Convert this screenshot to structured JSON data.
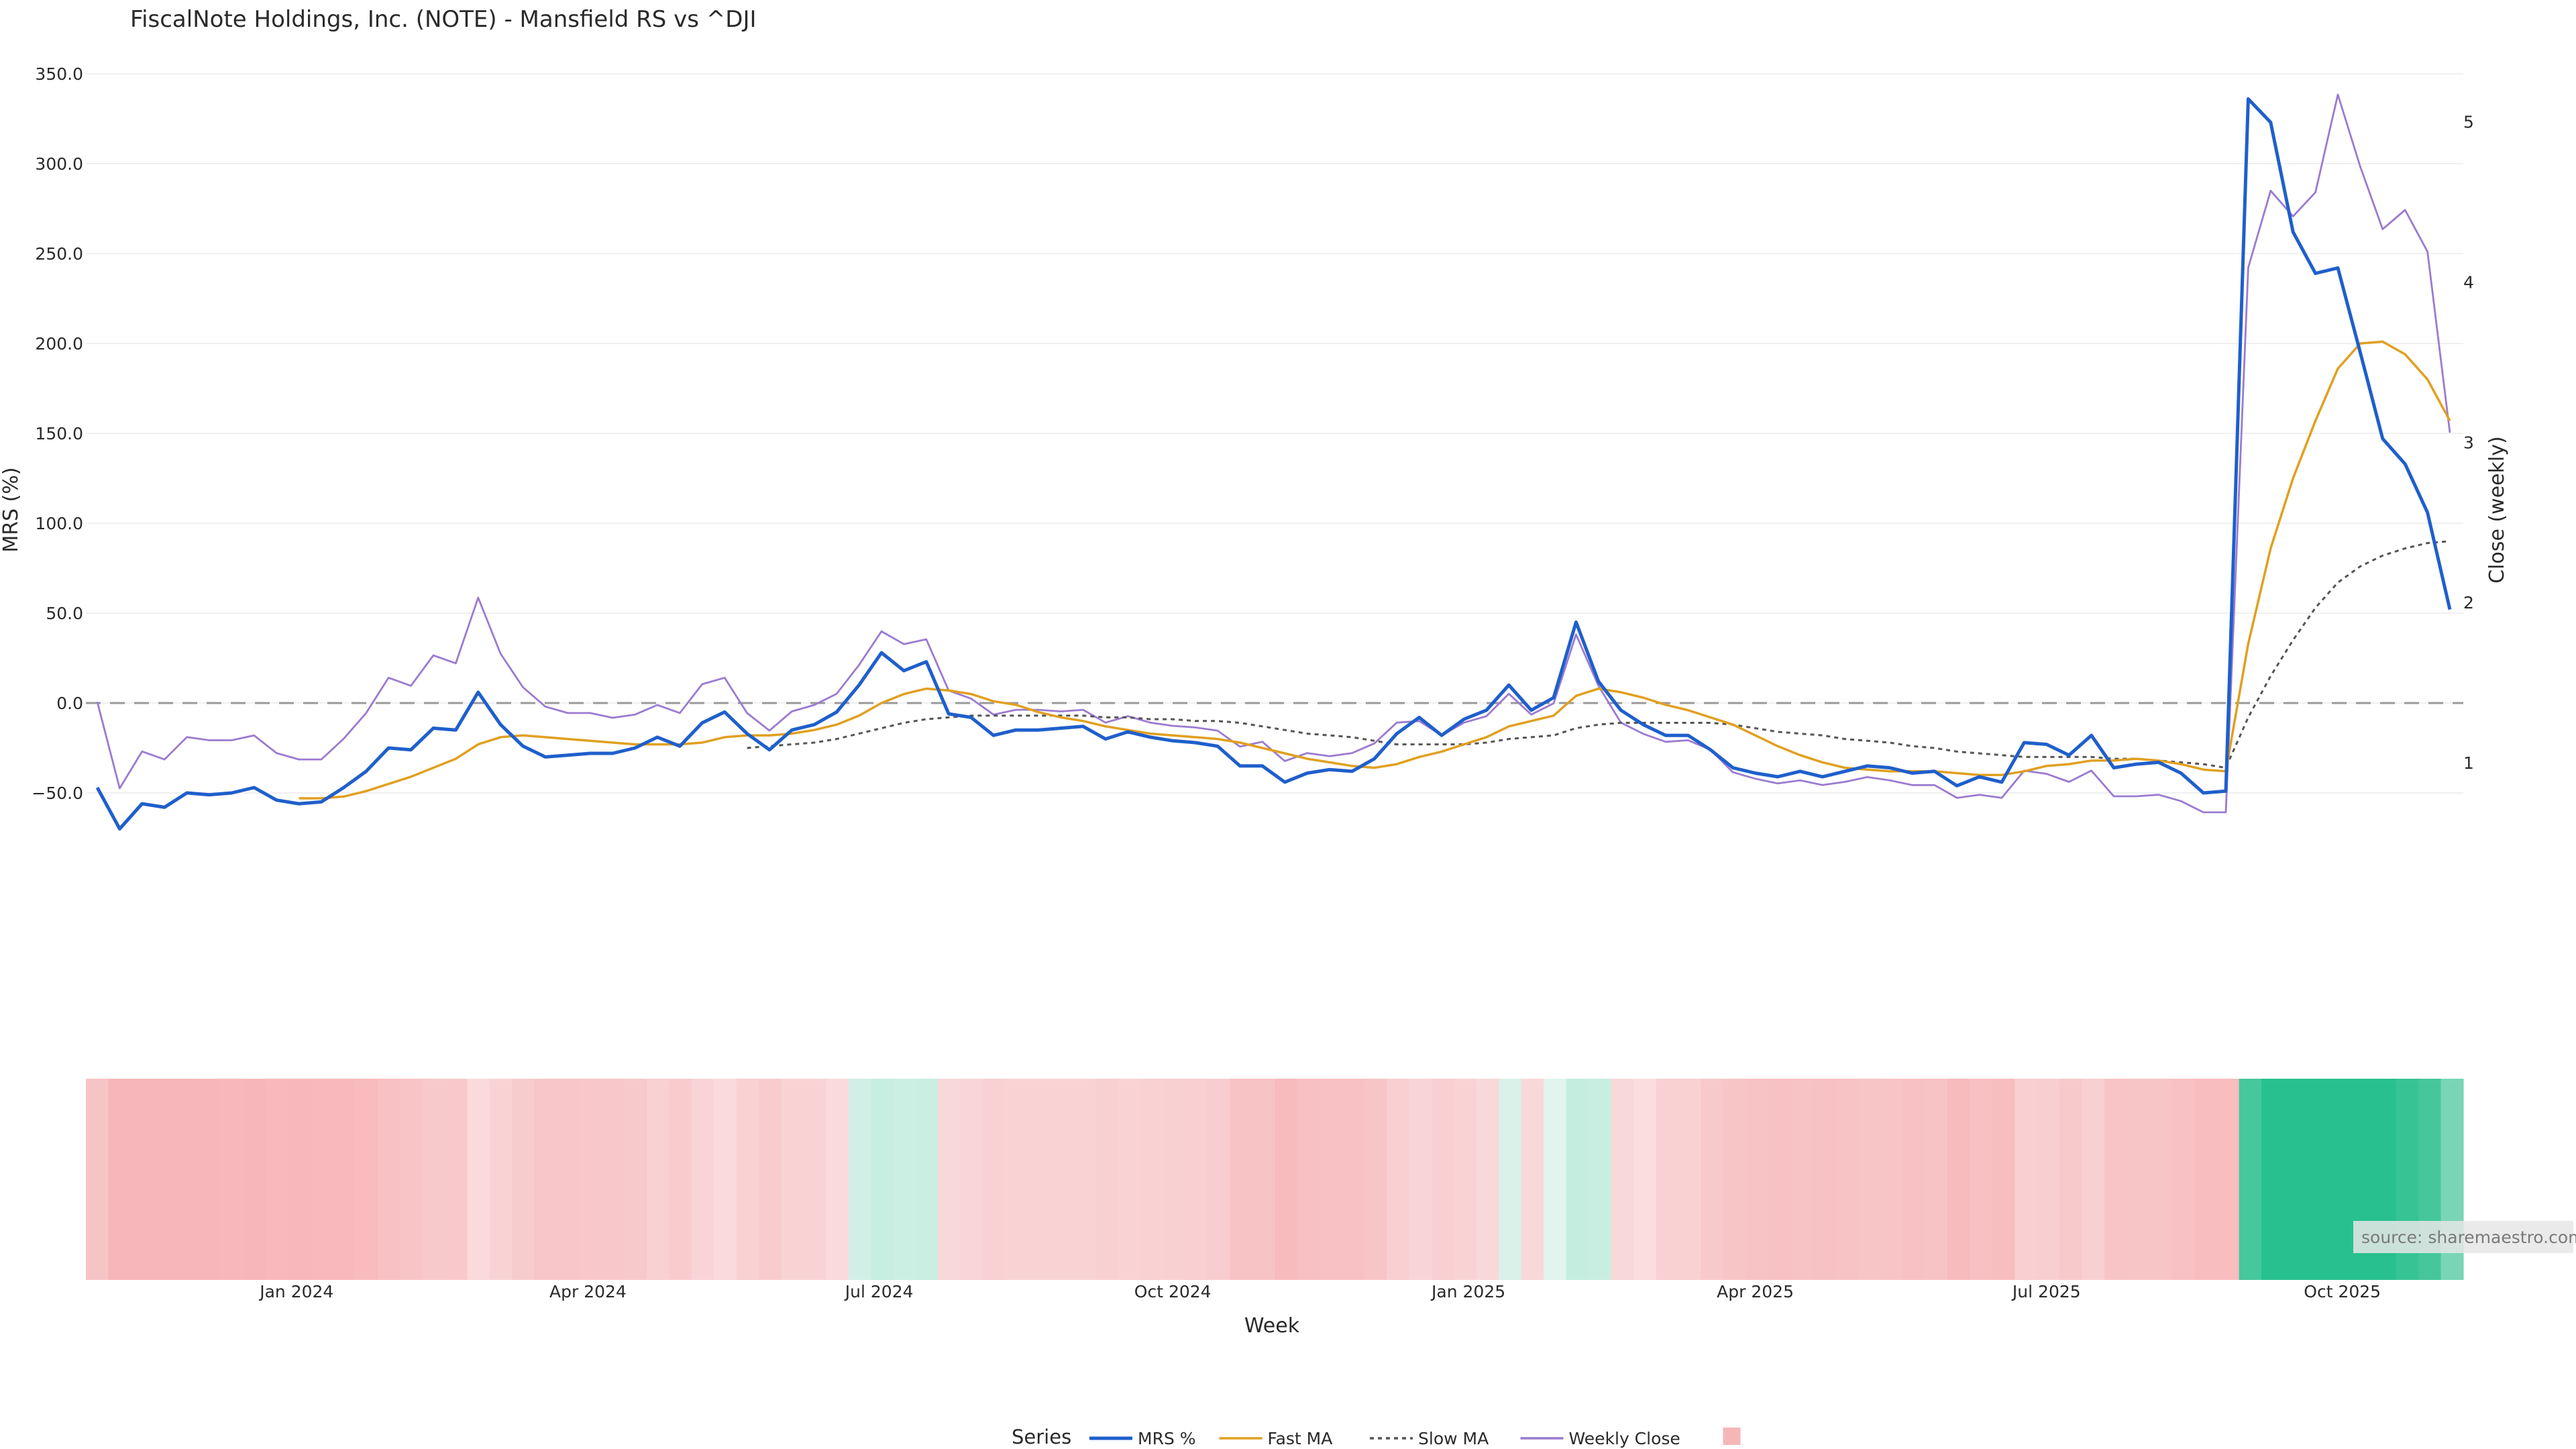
{
  "chart_data": {
    "type": "line",
    "title": "FiscalNote Holdings, Inc. (NOTE) - Mansfield RS vs ^DJI",
    "xlabel": "Week",
    "ylabel": "MRS (%)",
    "y2label": "Close (weekly)",
    "ylim": [
      -100,
      350
    ],
    "y2lim": [
      0.25,
      5.3
    ],
    "yticks": [
      "350.0",
      "300.0",
      "250.0",
      "200.0",
      "150.0",
      "100.0",
      "50.0",
      "0.0",
      "−50.0"
    ],
    "ytick_values": [
      350,
      300,
      250,
      200,
      150,
      100,
      50,
      0,
      -50
    ],
    "y2ticks": [
      "5",
      "4",
      "3",
      "2",
      "1"
    ],
    "y2tick_values": [
      5,
      4,
      3,
      2,
      1
    ],
    "xticks": [
      "Jan 2024",
      "Apr 2024",
      "Jul 2024",
      "Oct 2024",
      "Jan 2025",
      "Apr 2025",
      "Jul 2025",
      "Oct 2025"
    ],
    "xtick_index": [
      8.9,
      21.9,
      34.9,
      48.0,
      61.2,
      74.0,
      87.0,
      100.2
    ],
    "grid": true,
    "zero_line": true,
    "legend_title": "Series",
    "legend_position": "bottom",
    "source_text": "source: sharemaestro.com",
    "series": [
      {
        "name": "MRS %",
        "axis": "left",
        "color": "#1f5fcc",
        "values": [
          -47,
          -70,
          -56,
          -58,
          -50,
          -51,
          -50,
          -47,
          -54,
          -56,
          -55,
          -47,
          -38,
          -25,
          -26,
          -14,
          -15,
          6,
          -12,
          -24,
          -30,
          -29,
          -28,
          -28,
          -25,
          -19,
          -24,
          -11,
          -5,
          -17,
          -26,
          -15,
          -12,
          -5,
          10,
          28,
          18,
          23,
          -6,
          -8,
          -18,
          -15,
          -15,
          -14,
          -13,
          -20,
          -16,
          -19,
          -21,
          -22,
          -24,
          -35,
          -35,
          -44,
          -39,
          -37,
          -38,
          -31,
          -17,
          -8,
          -18,
          -9,
          -4,
          10,
          -4,
          3,
          45,
          12,
          -4,
          -12,
          -18,
          -18,
          -26,
          -36,
          -39,
          -41,
          -38,
          -41,
          -38,
          -35,
          -36,
          -39,
          -38,
          -46,
          -41,
          -44,
          -22,
          -23,
          -29,
          -18,
          -36,
          -34,
          -33,
          -39,
          -50,
          -49,
          336,
          323,
          262,
          239,
          242,
          195,
          147,
          133,
          106,
          52
        ]
      },
      {
        "name": "Fast MA",
        "axis": "left",
        "color": "#e0a020",
        "values": [
          null,
          null,
          null,
          null,
          null,
          null,
          null,
          null,
          null,
          -53,
          -53,
          -52,
          -49,
          -45,
          -41,
          -36,
          -31,
          -23,
          -19,
          -18,
          -19,
          -20,
          -21,
          -22,
          -23,
          -23,
          -23,
          -22,
          -19,
          -18,
          -18,
          -17,
          -15,
          -12,
          -7,
          0,
          5,
          8,
          7,
          5,
          1,
          -1,
          -5,
          -8,
          -10,
          -13,
          -15,
          -17,
          -18,
          -19,
          -20,
          -22,
          -25,
          -28,
          -31,
          -33,
          -35,
          -36,
          -34,
          -30,
          -27,
          -23,
          -19,
          -13,
          -10,
          -7,
          4,
          8,
          6,
          3,
          -1,
          -4,
          -8,
          -12,
          -18,
          -24,
          -29,
          -33,
          -36,
          -37,
          -38,
          -38,
          -38,
          -39,
          -40,
          -40,
          -38,
          -35,
          -34,
          -32,
          -32,
          -31,
          -32,
          -34,
          -37,
          -38,
          33,
          86,
          125,
          157,
          186,
          200,
          201,
          194,
          180,
          157
        ]
      },
      {
        "name": "Slow MA",
        "axis": "left",
        "color": "#555555",
        "dash": "6,6",
        "values": [
          null,
          null,
          null,
          null,
          null,
          null,
          null,
          null,
          null,
          null,
          null,
          null,
          null,
          null,
          null,
          null,
          null,
          null,
          null,
          null,
          null,
          null,
          null,
          null,
          null,
          null,
          null,
          null,
          null,
          -25,
          -24,
          -23,
          -22,
          -20,
          -17,
          -14,
          -11,
          -9,
          -8,
          -7,
          -7,
          -7,
          -7,
          -7,
          -7,
          -8,
          -8,
          -9,
          -9,
          -10,
          -10,
          -11,
          -13,
          -15,
          -17,
          -18,
          -19,
          -21,
          -23,
          -23,
          -23,
          -23,
          -22,
          -20,
          -19,
          -18,
          -14,
          -12,
          -11,
          -11,
          -11,
          -11,
          -11,
          -12,
          -14,
          -16,
          -17,
          -18,
          -20,
          -21,
          -22,
          -24,
          -25,
          -27,
          -28,
          -29,
          -30,
          -30,
          -30,
          -30,
          -31,
          -31,
          -32,
          -33,
          -34,
          -36,
          -8,
          15,
          35,
          53,
          67,
          76,
          82,
          86,
          89,
          90
        ]
      },
      {
        "name": "Weekly Close",
        "axis": "right",
        "color": "#9b7bd0",
        "values": [
          1.38,
          0.84,
          1.07,
          1.02,
          1.16,
          1.14,
          1.14,
          1.17,
          1.06,
          1.02,
          1.02,
          1.15,
          1.31,
          1.53,
          1.48,
          1.67,
          1.62,
          2.03,
          1.68,
          1.47,
          1.35,
          1.31,
          1.31,
          1.28,
          1.3,
          1.36,
          1.31,
          1.49,
          1.53,
          1.31,
          1.2,
          1.32,
          1.36,
          1.43,
          1.61,
          1.82,
          1.74,
          1.77,
          1.45,
          1.4,
          1.3,
          1.33,
          1.33,
          1.32,
          1.33,
          1.25,
          1.29,
          1.25,
          1.23,
          1.22,
          1.2,
          1.1,
          1.13,
          1.01,
          1.06,
          1.04,
          1.06,
          1.12,
          1.25,
          1.26,
          1.17,
          1.25,
          1.29,
          1.43,
          1.3,
          1.37,
          1.8,
          1.48,
          1.25,
          1.18,
          1.13,
          1.14,
          1.08,
          0.94,
          0.9,
          0.87,
          0.89,
          0.86,
          0.88,
          0.91,
          0.89,
          0.86,
          0.86,
          0.78,
          0.8,
          0.78,
          0.95,
          0.93,
          0.88,
          0.95,
          0.79,
          0.79,
          0.8,
          0.76,
          0.69,
          0.69,
          4.09,
          4.57,
          4.41,
          4.56,
          5.17,
          4.72,
          4.33,
          4.45,
          4.19,
          3.06
        ]
      }
    ],
    "heat_legend_color": "#f5b6b8",
    "heat_colors": [
      "#f7c4c6",
      "#f7b6b9",
      "#f7b6b9",
      "#f7b6b9",
      "#f7b6b9",
      "#f7b7ba",
      "#f7b8bb",
      "#f7b7ba",
      "#f7b9bc",
      "#f7b8bb",
      "#f7b9bc",
      "#f7b9bc",
      "#f8bcbe",
      "#f8c2c4",
      "#f8c4c6",
      "#f8c9cb",
      "#f8c8ca",
      "#fadadb",
      "#f9d3d4",
      "#f8cbcd",
      "#f8c6c8",
      "#f8c6c8",
      "#f8c7c9",
      "#f8c7c9",
      "#f8c9cb",
      "#f9d1d3",
      "#f8cbcd",
      "#f9d4d6",
      "#fadadb",
      "#f9d1d3",
      "#f8cbcd",
      "#f9d3d4",
      "#f9d3d4",
      "#fadadb",
      "#d1efe6",
      "#c6eee1",
      "#ccefe4",
      "#c9eee2",
      "#f9d8d9",
      "#f9d5d7",
      "#f9d1d3",
      "#f9d3d4",
      "#f9d3d4",
      "#f9d3d4",
      "#f9d3d4",
      "#f9d0d2",
      "#f9d2d4",
      "#f9d1d3",
      "#f9d0d2",
      "#f9cfd1",
      "#f8cdcf",
      "#f8c3c5",
      "#f8c3c5",
      "#f7bbbe",
      "#f8c0c2",
      "#f8c1c3",
      "#f8c1c3",
      "#f8c5c7",
      "#f9cfd1",
      "#f9d4d6",
      "#f9cfd1",
      "#f9d3d4",
      "#f9d8d9",
      "#d8f1e9",
      "#f9d8d9",
      "#e1f4ee",
      "#c4ede0",
      "#c8eee2",
      "#f9d8d9",
      "#fbdddd",
      "#f9d1d3",
      "#f9d1d3",
      "#f8c9cb",
      "#f8c5c7",
      "#f8c3c5",
      "#f8c1c3",
      "#f8c3c5",
      "#f8c1c3",
      "#f8c3c5",
      "#f8c5c7",
      "#f8c4c6",
      "#f8c2c4",
      "#f8c3c5",
      "#f7bbbe",
      "#f8c0c2",
      "#f7bdbf",
      "#f9cfd1",
      "#f8ced0",
      "#f8c9cb",
      "#f9d0d2",
      "#f8c4c6",
      "#f8c5c7",
      "#f8c5c7",
      "#f8c1c3",
      "#f7bdbf",
      "#f7bdbf",
      "#46c79c",
      "#28c08f",
      "#28c08f",
      "#28c08f",
      "#28c08f",
      "#28c08f",
      "#28c08f",
      "#36c495",
      "#45c79b",
      "#78d6b6"
    ]
  }
}
